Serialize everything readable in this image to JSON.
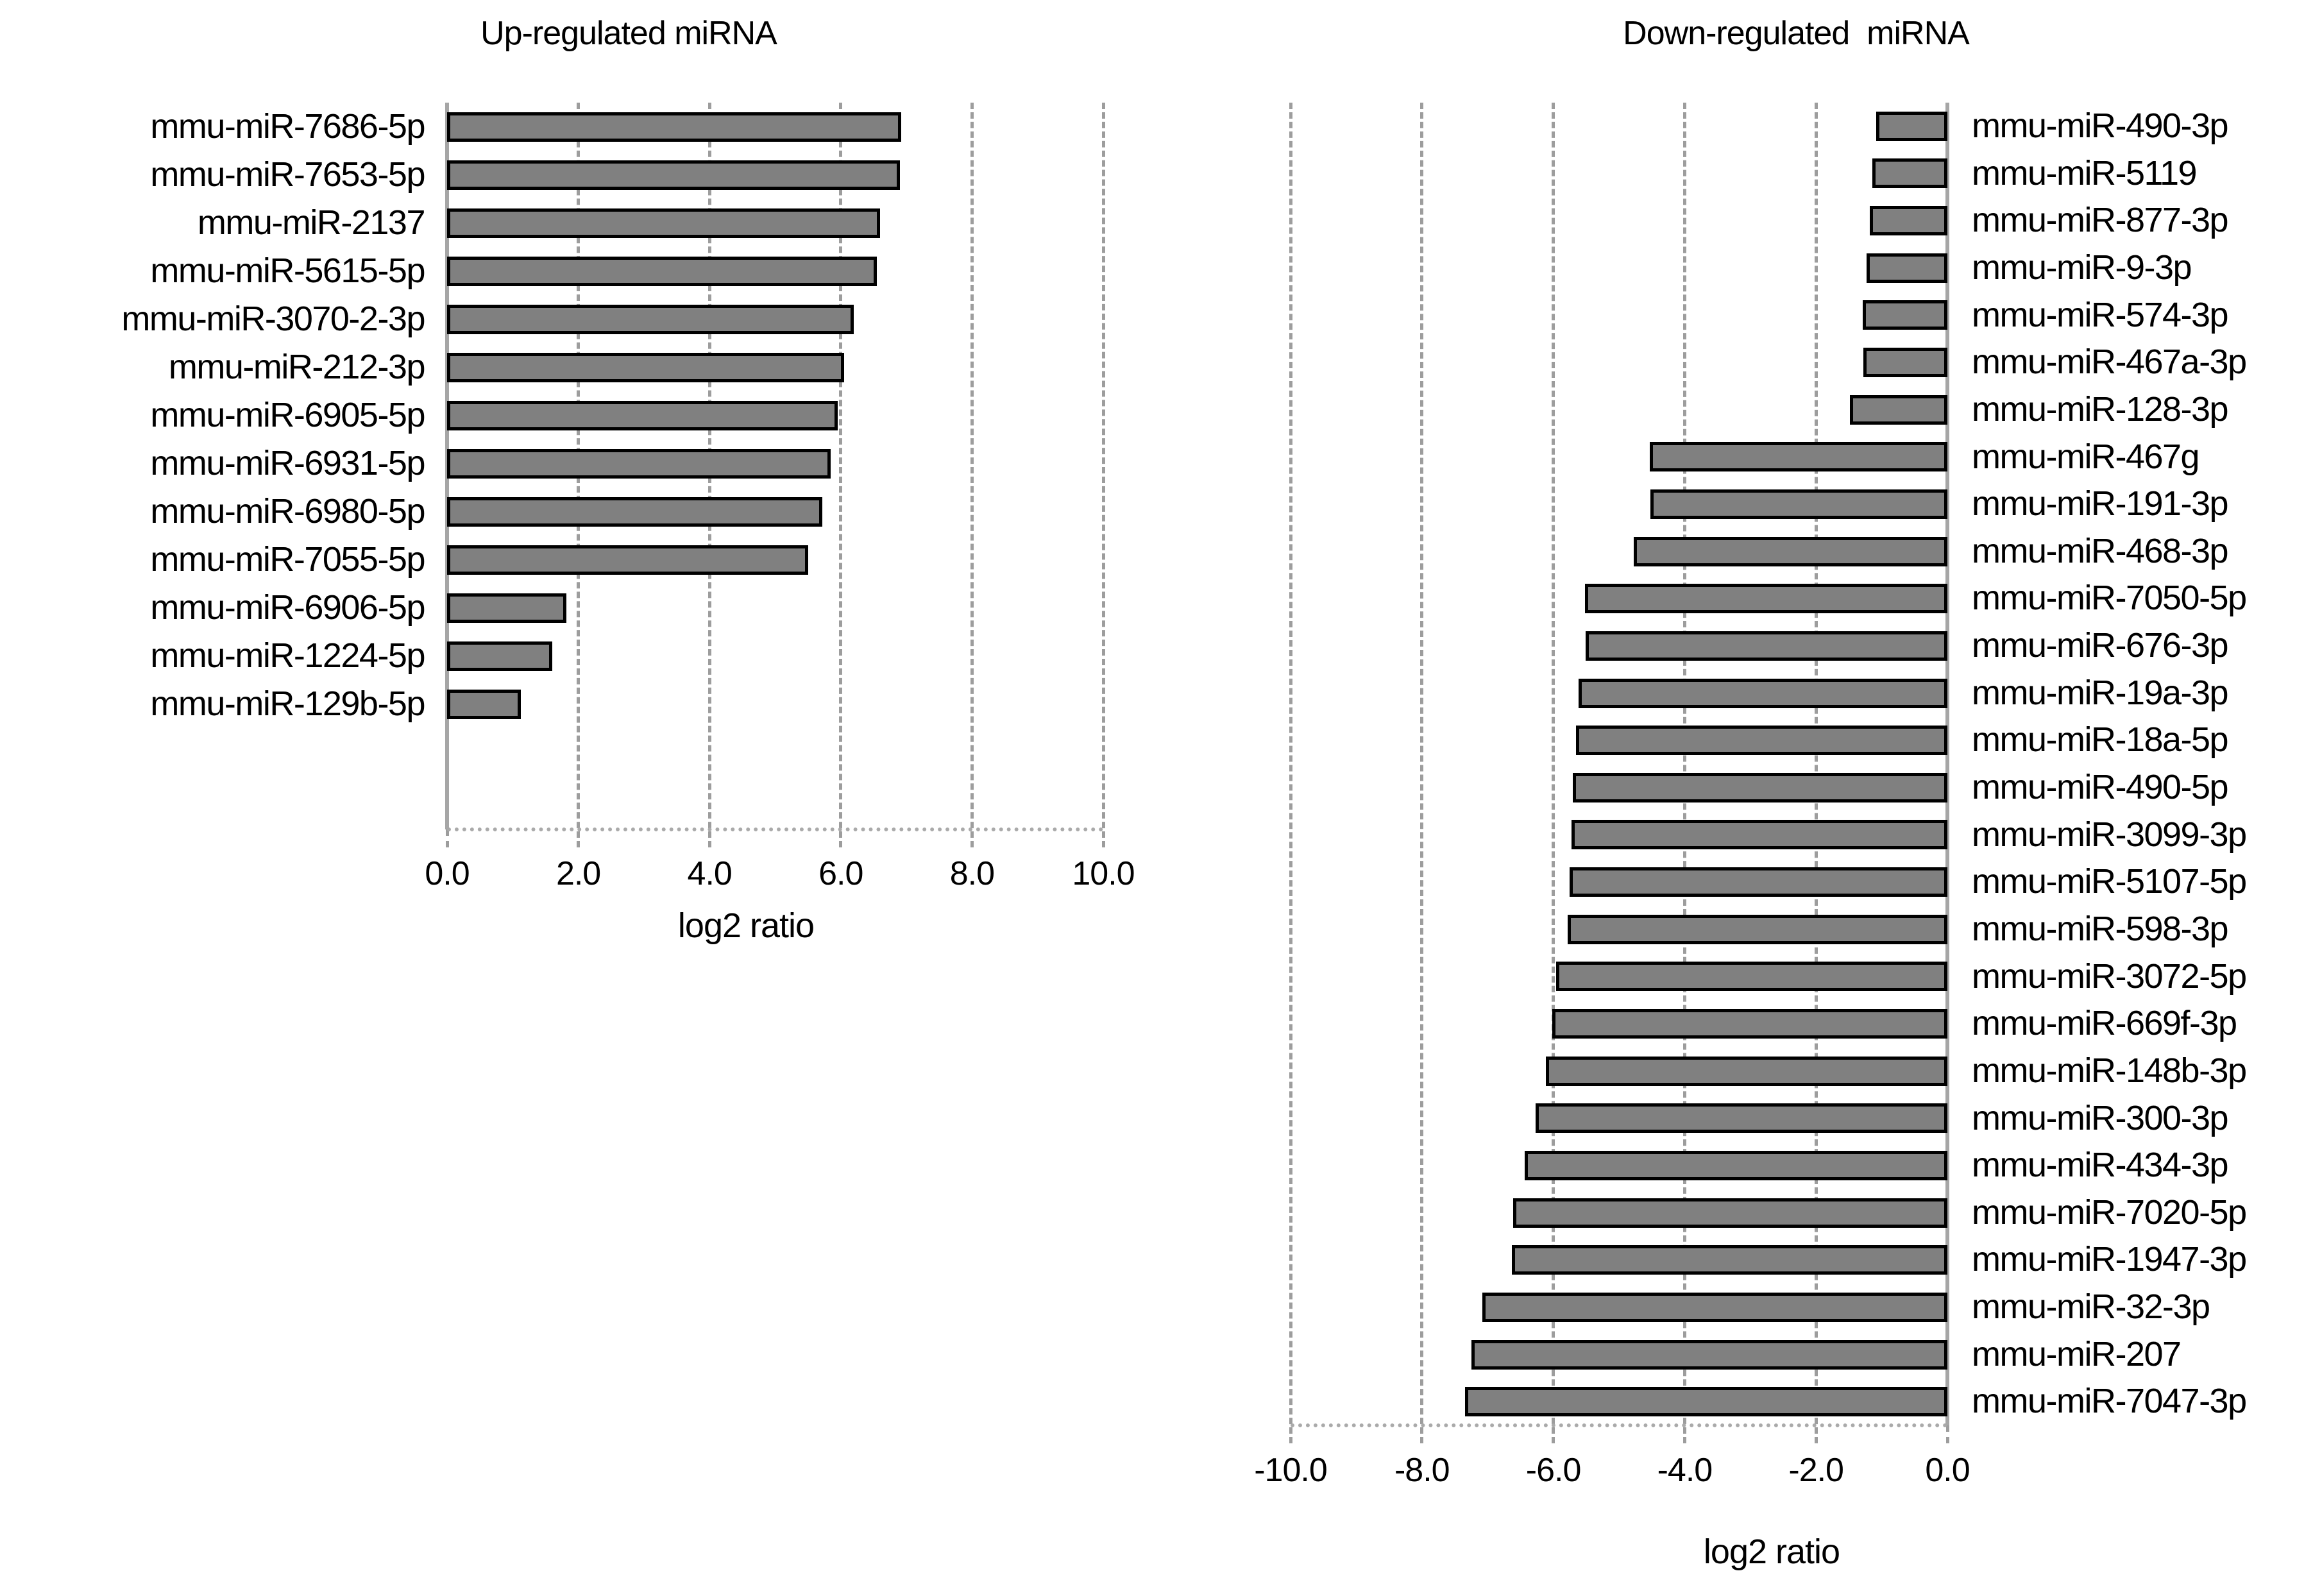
{
  "figure": {
    "description": "Two horizontal bar charts of differentially expressed miRNAs",
    "background": "#ffffff"
  },
  "colors": {
    "bar_fill": "#808080",
    "bar_border": "#000000",
    "axis_line": "#a6a6a6",
    "gridline": "#9d9d9d",
    "baseline_dotted": "#aaaaaa",
    "text": "#000000"
  },
  "chart_data": [
    {
      "type": "bar",
      "orientation": "horizontal",
      "title": "Up-regulated miRNA",
      "xlabel": "log2 ratio",
      "xlim": [
        0,
        10
      ],
      "xticks": [
        "0.0",
        "2.0",
        "4.0",
        "6.0",
        "8.0",
        "10.0"
      ],
      "xtick_values": [
        0,
        2,
        4,
        6,
        8,
        10
      ],
      "grid_values": [
        2,
        4,
        6,
        8,
        10
      ],
      "legend": "none",
      "grid": "vertical-dashed",
      "categories": [
        "mmu-miR-7686-5p",
        "mmu-miR-7653-5p",
        "mmu-miR-2137",
        "mmu-miR-5615-5p",
        "mmu-miR-3070-2-3p",
        "mmu-miR-212-3p",
        "mmu-miR-6905-5p",
        "mmu-miR-6931-5p",
        "mmu-miR-6980-5p",
        "mmu-miR-7055-5p",
        "mmu-miR-6906-5p",
        "mmu-miR-1224-5p",
        "mmu-miR-129b-5p"
      ],
      "values": [
        6.92,
        6.9,
        6.6,
        6.55,
        6.2,
        6.05,
        5.95,
        5.85,
        5.72,
        5.5,
        1.82,
        1.6,
        1.12
      ]
    },
    {
      "type": "bar",
      "orientation": "horizontal",
      "title": "Down-regulated  miRNA",
      "xlabel": "log2 ratio",
      "xlim": [
        -10,
        0
      ],
      "xticks": [
        "-10.0",
        "-8.0",
        "-6.0",
        "-4.0",
        "-2.0",
        "0.0"
      ],
      "xtick_values": [
        -10,
        -8,
        -6,
        -4,
        -2,
        0
      ],
      "grid_values": [
        -10,
        -8,
        -6,
        -4,
        -2
      ],
      "legend": "none",
      "grid": "vertical-dashed",
      "categories": [
        "mmu-miR-490-3p",
        "mmu-miR-5119",
        "mmu-miR-877-3p",
        "mmu-miR-9-3p",
        "mmu-miR-574-3p",
        "mmu-miR-467a-3p",
        "mmu-miR-128-3p",
        "mmu-miR-467g",
        "mmu-miR-191-3p",
        "mmu-miR-468-3p",
        "mmu-miR-7050-5p",
        "mmu-miR-676-3p",
        "mmu-miR-19a-3p",
        "mmu-miR-18a-5p",
        "mmu-miR-490-5p",
        "mmu-miR-3099-3p",
        "mmu-miR-5107-5p",
        "mmu-miR-598-3p",
        "mmu-miR-3072-5p",
        "mmu-miR-669f-3p",
        "mmu-miR-148b-3p",
        "mmu-miR-300-3p",
        "mmu-miR-434-3p",
        "mmu-miR-7020-5p",
        "mmu-miR-1947-3p",
        "mmu-miR-32-3p",
        "mmu-miR-207",
        "mmu-miR-7047-3p"
      ],
      "values": [
        -1.08,
        -1.14,
        -1.18,
        -1.23,
        -1.29,
        -1.28,
        -1.48,
        -4.53,
        -4.52,
        -4.78,
        -5.52,
        -5.51,
        -5.62,
        -5.65,
        -5.7,
        -5.72,
        -5.75,
        -5.78,
        -5.96,
        -6.02,
        -6.11,
        -6.27,
        -6.44,
        -6.61,
        -6.63,
        -7.08,
        -7.25,
        -7.34
      ]
    }
  ]
}
